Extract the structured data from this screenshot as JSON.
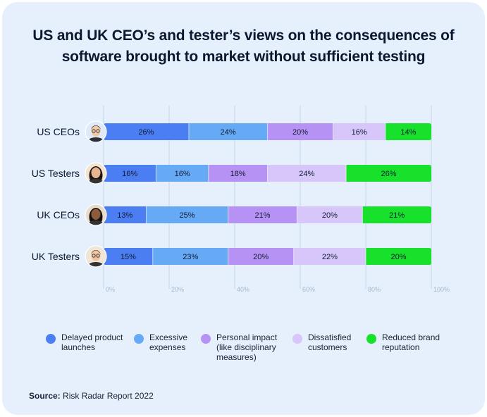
{
  "title_line1": "US and UK CEO’s and tester’s views on the consequences of",
  "title_line2": "software brought to market without sufficient testing",
  "source_label": "Source:",
  "source_text": " Risk Radar Report 2022",
  "chart_data": {
    "type": "stacked-horizontal-bar",
    "title": "US and UK CEO’s and tester’s views on the consequences of software brought to market without sufficient testing",
    "categories": [
      "US CEOs",
      "US Testers",
      "UK CEOs",
      "UK Testers"
    ],
    "series": [
      {
        "name": "Delayed product launches",
        "color": "#4a7ef2",
        "values": [
          26,
          16,
          13,
          15
        ]
      },
      {
        "name": "Excessive expenses",
        "color": "#66aaf5",
        "values": [
          24,
          16,
          25,
          23
        ]
      },
      {
        "name": "Personal impact (like disciplinary measures)",
        "color": "#b692f5",
        "values": [
          20,
          18,
          21,
          20
        ]
      },
      {
        "name": "Dissatisfied customers",
        "color": "#d7c6fa",
        "values": [
          16,
          24,
          20,
          22
        ]
      },
      {
        "name": "Reduced brand reputation",
        "color": "#17e12b",
        "values": [
          14,
          26,
          21,
          20
        ]
      }
    ],
    "x_ticks": [
      "0%",
      "20%",
      "40%",
      "60%",
      "80%",
      "100%"
    ],
    "xlim": [
      0,
      100
    ],
    "grid": true,
    "legend_position": "bottom"
  },
  "legend": [
    {
      "label": "Delayed product launches",
      "color": "#4a7ef2"
    },
    {
      "label": "Excessive expenses",
      "color": "#66aaf5"
    },
    {
      "label": "Personal impact (like disciplinary measures)",
      "color": "#b692f5"
    },
    {
      "label": "Dissatisfied customers",
      "color": "#d7c6fa"
    },
    {
      "label": "Reduced brand reputation",
      "color": "#17e12b"
    }
  ]
}
